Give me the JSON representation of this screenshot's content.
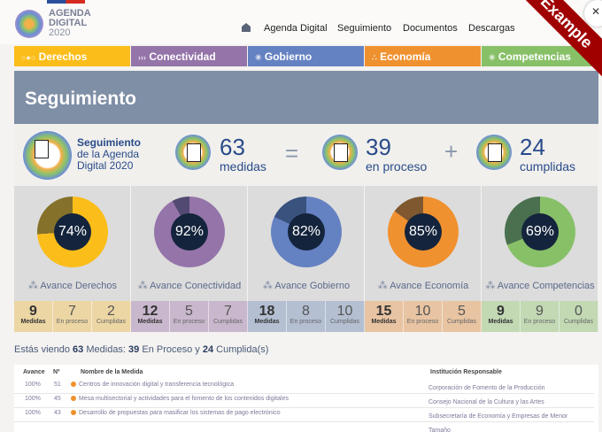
{
  "header": {
    "logo_lines": [
      "AGENDA",
      "DIGITAL",
      "2020"
    ],
    "nav": [
      "Agenda Digital",
      "Seguimiento",
      "Documentos",
      "Descargas"
    ]
  },
  "categories": [
    {
      "label": "Derechos",
      "color": "#fbbd1a"
    },
    {
      "label": "Conectividad",
      "color": "#9474a9"
    },
    {
      "label": "Gobierno",
      "color": "#6481c2"
    },
    {
      "label": "Economía",
      "color": "#f0912f"
    },
    {
      "label": "Competencias",
      "color": "#88c068"
    }
  ],
  "page_title": "Seguimiento",
  "summary": {
    "title_bold": "Seguimiento",
    "title_rest1": "de la Agenda",
    "title_rest2": "Digital 2020",
    "total": "63",
    "total_label": "medidas",
    "equals": "=",
    "in_progress": "39",
    "in_progress_label": "en proceso",
    "plus": "+",
    "done": "24",
    "done_label": "cumplidas"
  },
  "areas": [
    {
      "pct": 74,
      "pct_label": "74%",
      "label": "Avance Derechos",
      "color": "#fbbd1a",
      "dark": "#85712a",
      "bg": "#ecd6a4",
      "medidas": "9",
      "proceso": "7",
      "cumplidas": "2"
    },
    {
      "pct": 92,
      "pct_label": "92%",
      "label": "Avance Conectividad",
      "color": "#9474a9",
      "dark": "#524a72",
      "bg": "#c9b8cd",
      "medidas": "12",
      "proceso": "5",
      "cumplidas": "7"
    },
    {
      "pct": 82,
      "pct_label": "82%",
      "label": "Avance Gobierno",
      "color": "#6481c2",
      "dark": "#3a527e",
      "bg": "#b4bfd2",
      "medidas": "18",
      "proceso": "8",
      "cumplidas": "10"
    },
    {
      "pct": 85,
      "pct_label": "85%",
      "label": "Avance Economía",
      "color": "#f0912f",
      "dark": "#7f5830",
      "bg": "#e8c4a2",
      "medidas": "15",
      "proceso": "10",
      "cumplidas": "5"
    },
    {
      "pct": 69,
      "pct_label": "69%",
      "label": "Avance Competencias",
      "color": "#88c068",
      "dark": "#4a7050",
      "bg": "#c2d9b4",
      "medidas": "9",
      "proceso": "9",
      "cumplidas": "0"
    }
  ],
  "stat_labels": {
    "medidas": "Medidas",
    "proceso": "En proceso",
    "cumplidas": "Cumplidas"
  },
  "viewing": {
    "a": "Estás viendo ",
    "n1": "63",
    "b": " Medidas: ",
    "n2": "39",
    "c": " En Proceso y ",
    "n3": "24",
    "d": " Cumplida(s)"
  },
  "table": {
    "headers": [
      "Avance",
      "Nº",
      "Nombre de la Medida",
      "Institución Responsable"
    ],
    "rows": [
      {
        "avance": "100%",
        "n": "51",
        "name": "Centros de innovación digital y transferencia tecnológica",
        "inst": "Corporación de Fomento de la Producción"
      },
      {
        "avance": "100%",
        "n": "45",
        "name": "Mesa multisectorial y actividades para el fomento de los contenidos digitales",
        "inst": "Consejo Nacional de la Cultura y las Artes"
      },
      {
        "avance": "100%",
        "n": "43",
        "name": "Desarrollo de propuestas para masificar los sistemas de pago electrónico",
        "inst": "Subsecretaría de Economía y Empresas de Menor Tamaño"
      }
    ]
  },
  "ribbon": "Example"
}
